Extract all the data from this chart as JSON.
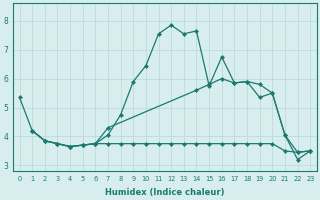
{
  "xlabel": "Humidex (Indice chaleur)",
  "xlim": [
    -0.5,
    23.5
  ],
  "ylim": [
    2.8,
    8.6
  ],
  "yticks": [
    3,
    4,
    5,
    6,
    7,
    8
  ],
  "xticks": [
    0,
    1,
    2,
    3,
    4,
    5,
    6,
    7,
    8,
    9,
    10,
    11,
    12,
    13,
    14,
    15,
    16,
    17,
    18,
    19,
    20,
    21,
    22,
    23
  ],
  "bg_color": "#d8eeee",
  "grid_color": "#b8d8d8",
  "line_color": "#1a7a6e",
  "line1_x": [
    0,
    1,
    2,
    3,
    4,
    5,
    6,
    7,
    8,
    9,
    10,
    11,
    12,
    13,
    14,
    15,
    16,
    17,
    18,
    19,
    20,
    21,
    22,
    23
  ],
  "line1_y": [
    5.35,
    4.2,
    3.85,
    3.75,
    3.65,
    3.7,
    3.75,
    4.05,
    4.75,
    5.9,
    6.45,
    7.55,
    7.85,
    7.55,
    7.65,
    5.75,
    6.75,
    5.85,
    5.9,
    5.35,
    5.5,
    4.05,
    3.2,
    3.5
  ],
  "line2_x": [
    1,
    2,
    3,
    4,
    5,
    6,
    7,
    14,
    15,
    16,
    17,
    18,
    19,
    20,
    21,
    22,
    23
  ],
  "line2_y": [
    4.2,
    3.85,
    3.75,
    3.65,
    3.7,
    3.75,
    4.3,
    5.6,
    5.8,
    6.0,
    5.85,
    5.9,
    5.8,
    5.5,
    4.05,
    3.45,
    3.5
  ],
  "line3_x": [
    1,
    2,
    3,
    4,
    5,
    6,
    7,
    8,
    9,
    10,
    11,
    12,
    13,
    14,
    15,
    16,
    17,
    18,
    19,
    20,
    21,
    22,
    23
  ],
  "line3_y": [
    4.2,
    3.85,
    3.75,
    3.65,
    3.7,
    3.75,
    3.75,
    3.75,
    3.75,
    3.75,
    3.75,
    3.75,
    3.75,
    3.75,
    3.75,
    3.75,
    3.75,
    3.75,
    3.75,
    3.75,
    3.5,
    3.45,
    3.5
  ],
  "marker": "D",
  "marker_size": 2.5,
  "linewidth": 0.9
}
